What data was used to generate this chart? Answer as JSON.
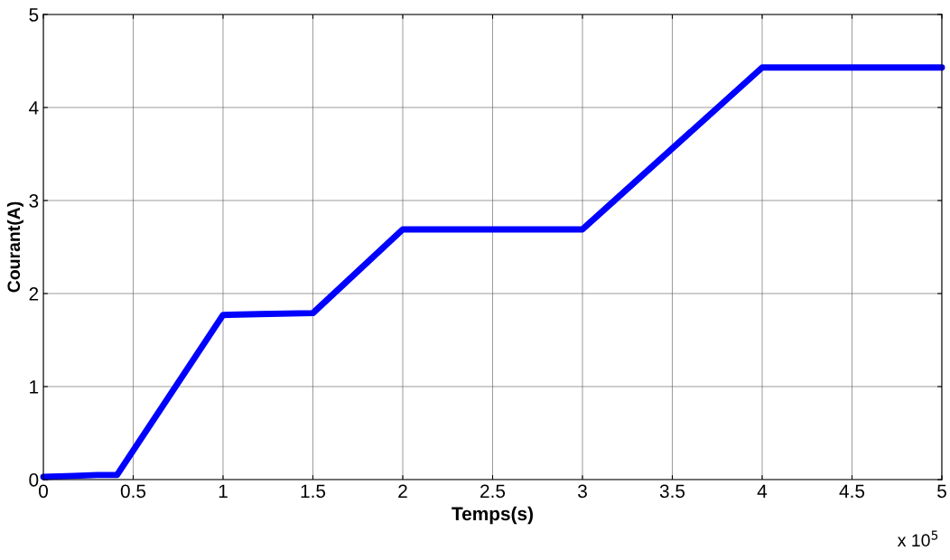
{
  "chart_data": {
    "type": "line",
    "xlabel": "Temps(s)",
    "ylabel": "Courant(A)",
    "x": [
      0,
      0.17,
      0.3,
      0.41,
      1.0,
      1.2,
      1.5,
      2.0,
      3.0,
      4.0,
      5.0
    ],
    "series": [
      {
        "color": "#0000ff",
        "values": [
          0.03,
          0.04,
          0.05,
          0.05,
          1.77,
          1.78,
          1.79,
          2.69,
          2.69,
          4.43,
          4.43
        ]
      }
    ],
    "xlim": [
      0,
      5
    ],
    "ylim": [
      0,
      5
    ],
    "xticks": [
      0,
      0.5,
      1,
      1.5,
      2,
      2.5,
      3,
      3.5,
      4,
      4.5,
      5
    ],
    "yticks": [
      0,
      1,
      2,
      3,
      4,
      5
    ],
    "grid": true,
    "legend": false,
    "marker": "none",
    "line_style": "solid",
    "annotations": [
      "x 10$^{5}$"
    ]
  }
}
